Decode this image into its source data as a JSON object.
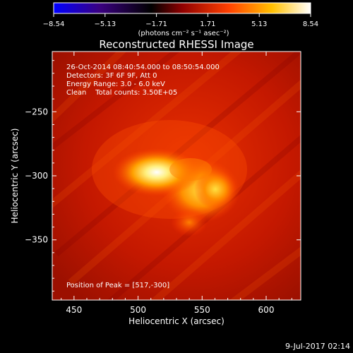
{
  "colorbar": {
    "ticks": [
      "−8.54",
      "−5.13",
      "−1.71",
      "1.71",
      "5.13",
      "8.54"
    ],
    "units": "(photons cm⁻² s⁻¹ asec⁻²)",
    "colors": [
      "#0000ff",
      "#000000",
      "#ff0000",
      "#ffff00",
      "#ffffff"
    ]
  },
  "plot": {
    "title": "Reconstructed RHESSI Image",
    "xlabel": "Heliocentric X (arcsec)",
    "ylabel": "Heliocentric Y (arcsec)",
    "x_ticks": [
      "450",
      "500",
      "550",
      "600"
    ],
    "y_ticks": [
      "−250",
      "−300",
      "−350"
    ],
    "info_lines": [
      "26-Oct-2014 08:40:54.000 to 08:50:54.000",
      "Detectors: 3F 6F 9F, Att 0",
      "Energy Range: 3.0 - 6.0 keV",
      "Clean    Total counts: 3.50E+05"
    ],
    "peak_text": "Position of Peak = [517,-300]"
  },
  "footer": {
    "timestamp": "9-Jul-2017 02:14"
  },
  "chart_data": {
    "type": "heatmap",
    "title": "Reconstructed RHESSI Image",
    "xlabel": "Heliocentric X (arcsec)",
    "ylabel": "Heliocentric Y (arcsec)",
    "xlim": [
      433,
      627
    ],
    "ylim": [
      -397,
      -203
    ],
    "x_ticks": [
      450,
      500,
      550,
      600
    ],
    "y_ticks": [
      -250,
      -300,
      -350
    ],
    "colorbar_range": [
      -8.54,
      8.54
    ],
    "colorbar_ticks": [
      -8.54,
      -5.13,
      -1.71,
      1.71,
      5.13,
      8.54
    ],
    "peak": [
      517,
      -300
    ],
    "sources": [
      {
        "x": 517,
        "y": -300,
        "peak": 8.54
      },
      {
        "x": 560,
        "y": -315,
        "peak": 6.3
      },
      {
        "x": 540,
        "y": -340,
        "peak": 4.8
      }
    ],
    "grid": false
  }
}
